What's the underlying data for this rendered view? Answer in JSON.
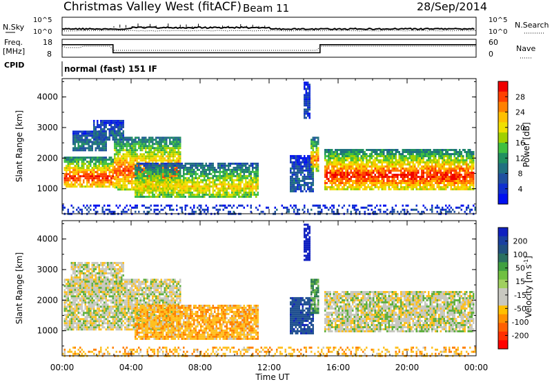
{
  "header": {
    "title": "Christmas Valley West (fitACF)",
    "beam": "Beam 11",
    "date": "28/Sep/2014"
  },
  "sky_panel": {
    "left_label": "N.Sky",
    "left_ticks": [
      "10^5",
      "10^0"
    ],
    "right_label": "N.Search",
    "right_ticks": [
      "10^5",
      "10^0"
    ]
  },
  "freq_panel": {
    "left_label_line1": "Freq.",
    "left_label_line2": "[MHz]",
    "left_ticks": [
      "18",
      "8"
    ],
    "right_label": "Nave",
    "right_ticks": [
      "60",
      "0"
    ]
  },
  "cpid": {
    "label": "CPID",
    "text": "normal (fast) 151 IF"
  },
  "x_axis": {
    "label": "Time UT",
    "ticks": [
      "00:00",
      "04:00",
      "08:00",
      "12:00",
      "16:00",
      "20:00",
      "00:00"
    ]
  },
  "power_colorbar": {
    "label": "Power [dB]",
    "ticks": [
      "28",
      "24",
      "20",
      "16",
      "12",
      "8",
      "4"
    ],
    "colors": [
      "#f00000",
      "#ff4000",
      "#ff8000",
      "#ffc000",
      "#f0e000",
      "#a0d000",
      "#40c040",
      "#209060",
      "#207080",
      "#2050a0",
      "#1030d0",
      "#0010f0"
    ]
  },
  "velocity_colorbar": {
    "label": "Velocity [m s^-1]",
    "ticks": [
      "200",
      "100",
      "50",
      "15",
      "-15",
      "-50",
      "-100",
      "-200"
    ],
    "colors": [
      "#1020c0",
      "#1a40a0",
      "#205080",
      "#2a7060",
      "#40a040",
      "#70c040",
      "#a0d060",
      "#c8c8c0",
      "#c8c8c0",
      "#ffc000",
      "#ff9000",
      "#ff6000",
      "#ff3000",
      "#ff0000"
    ]
  },
  "chart_data": [
    {
      "type": "heatmap",
      "name": "power",
      "xlabel": "Time UT",
      "ylabel": "Slant Range [km]",
      "xlim_hours": [
        0,
        24
      ],
      "ylim_km": [
        180,
        4600
      ],
      "yticks": [
        "1000",
        "2000",
        "3000",
        "4000"
      ],
      "zlim_db": [
        0,
        30
      ],
      "regions": [
        {
          "t0": 0.1,
          "t1": 3.0,
          "r0": 1050,
          "r1": 2050,
          "peak_db": 28
        },
        {
          "t0": 0.6,
          "t1": 2.6,
          "r0": 2250,
          "r1": 2900,
          "peak_db": 10
        },
        {
          "t0": 1.8,
          "t1": 3.6,
          "r0": 2600,
          "r1": 3250,
          "peak_db": 8
        },
        {
          "t0": 3.0,
          "t1": 6.9,
          "r0": 1000,
          "r1": 2700,
          "peak_db": 26
        },
        {
          "t0": 4.2,
          "t1": 11.3,
          "r0": 700,
          "r1": 1850,
          "peak_db": 20
        },
        {
          "t0": 13.2,
          "t1": 14.5,
          "r0": 900,
          "r1": 2100,
          "peak_db": 8
        },
        {
          "t0": 14.0,
          "t1": 14.4,
          "r0": 3300,
          "r1": 4500,
          "peak_db": 6
        },
        {
          "t0": 14.4,
          "t1": 14.9,
          "r0": 1600,
          "r1": 2700,
          "peak_db": 24
        },
        {
          "t0": 15.2,
          "t1": 23.9,
          "r0": 1000,
          "r1": 2300,
          "peak_db": 28
        },
        {
          "t0": 0.0,
          "t1": 24.0,
          "r0": 200,
          "r1": 480,
          "peak_db": 6
        }
      ]
    },
    {
      "type": "heatmap",
      "name": "velocity",
      "xlabel": "Time UT",
      "ylabel": "Slant Range [km]",
      "xlim_hours": [
        0,
        24
      ],
      "ylim_km": [
        180,
        4600
      ],
      "yticks": [
        "1000",
        "2000",
        "3000",
        "4000"
      ],
      "zlim_ms": [
        -250,
        250
      ],
      "regions": [
        {
          "t0": 0.1,
          "t1": 6.9,
          "r0": 1050,
          "r1": 2700,
          "velocity": 0
        },
        {
          "t0": 0.5,
          "t1": 3.6,
          "r0": 2250,
          "r1": 3250,
          "velocity": 0
        },
        {
          "t0": 4.2,
          "t1": 11.3,
          "r0": 700,
          "r1": 1850,
          "velocity": -40
        },
        {
          "t0": 13.2,
          "t1": 14.5,
          "r0": 900,
          "r1": 2100,
          "velocity": 150
        },
        {
          "t0": 14.0,
          "t1": 14.4,
          "r0": 3300,
          "r1": 4500,
          "velocity": 200
        },
        {
          "t0": 14.4,
          "t1": 14.9,
          "r0": 1600,
          "r1": 2700,
          "velocity": 40
        },
        {
          "t0": 15.2,
          "t1": 23.9,
          "r0": 1000,
          "r1": 2300,
          "velocity": 0
        },
        {
          "t0": 0.0,
          "t1": 24.0,
          "r0": 200,
          "r1": 480,
          "velocity": -40
        }
      ]
    },
    {
      "type": "line",
      "name": "transmit-frequency",
      "ylim_mhz": [
        8,
        18
      ],
      "series": [
        {
          "x_hours": [
            0,
            2.95,
            2.95,
            14.95,
            14.95,
            24
          ],
          "y_mhz": [
            15,
            15,
            10.5,
            10.5,
            15,
            15
          ]
        }
      ]
    }
  ]
}
